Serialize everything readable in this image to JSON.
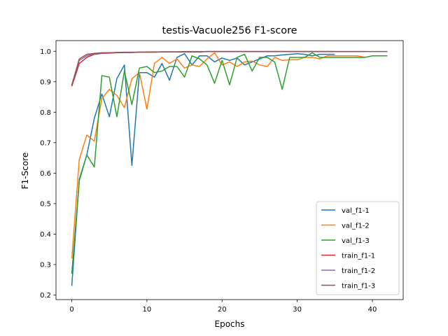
{
  "chart_data": {
    "type": "line",
    "title": "testis-Vacuole256 F1-score",
    "xlabel": "Epochs",
    "ylabel": "F1-Score",
    "xlim": [
      -2.1,
      44.1
    ],
    "ylim": [
      0.185,
      1.035
    ],
    "xticks": [
      0,
      10,
      20,
      30,
      40
    ],
    "yticks": [
      0.2,
      0.3,
      0.4,
      0.5,
      0.6,
      0.7,
      0.8,
      0.9,
      1.0
    ],
    "xtick_labels": [
      "0",
      "10",
      "20",
      "30",
      "40"
    ],
    "ytick_labels": [
      "0.2",
      "0.3",
      "0.4",
      "0.5",
      "0.6",
      "0.7",
      "0.8",
      "0.9",
      "1.0"
    ],
    "grid": false,
    "legend_position": "lower-right",
    "series": [
      {
        "name": "val_f1-1",
        "color": "#1f77b4",
        "x": [
          0,
          1,
          2,
          3,
          4,
          5,
          6,
          7,
          8,
          9,
          10,
          11,
          12,
          13,
          14,
          15,
          16,
          17,
          18,
          19,
          20,
          21,
          22,
          23,
          24,
          25,
          26,
          27,
          28,
          29,
          30,
          31,
          32,
          33,
          34,
          35
        ],
        "values": [
          0.23,
          0.58,
          0.66,
          0.78,
          0.86,
          0.785,
          0.91,
          0.955,
          0.625,
          0.93,
          0.93,
          0.915,
          0.96,
          0.905,
          0.98,
          0.992,
          0.955,
          0.985,
          0.985,
          0.965,
          0.978,
          0.97,
          0.978,
          0.955,
          0.965,
          0.975,
          0.985,
          0.985,
          0.988,
          0.99,
          0.992,
          0.99,
          0.985,
          0.99,
          0.99,
          0.99
        ]
      },
      {
        "name": "val_f1-2",
        "color": "#ff7f0e",
        "x": [
          0,
          1,
          2,
          3,
          4,
          5,
          6,
          7,
          8,
          9,
          10,
          11,
          12,
          13,
          14,
          15,
          16,
          17,
          18,
          19,
          20,
          21,
          22,
          23,
          24,
          25,
          26,
          27,
          28,
          29,
          30,
          31,
          32,
          33,
          34,
          35,
          36,
          37,
          38,
          39
        ],
        "values": [
          0.32,
          0.645,
          0.725,
          0.705,
          0.845,
          0.875,
          0.855,
          0.815,
          0.91,
          0.93,
          0.81,
          0.96,
          0.98,
          0.96,
          0.975,
          0.945,
          0.955,
          0.95,
          0.975,
          0.995,
          0.955,
          0.965,
          0.95,
          0.965,
          0.968,
          0.955,
          0.95,
          0.98,
          0.97,
          0.972,
          0.972,
          0.98,
          0.98,
          0.975,
          0.985,
          0.985,
          0.985,
          0.985,
          0.985,
          0.98
        ]
      },
      {
        "name": "val_f1-3",
        "color": "#2ca02c",
        "x": [
          0,
          1,
          2,
          3,
          4,
          5,
          6,
          7,
          8,
          9,
          10,
          11,
          12,
          13,
          14,
          15,
          16,
          17,
          18,
          19,
          20,
          21,
          22,
          23,
          24,
          25,
          26,
          27,
          28,
          29,
          30,
          31,
          32,
          33,
          34,
          35,
          36,
          37,
          38,
          39,
          40,
          41,
          42
        ],
        "values": [
          0.27,
          0.575,
          0.66,
          0.62,
          0.92,
          0.915,
          0.785,
          0.935,
          0.825,
          0.945,
          0.95,
          0.93,
          0.935,
          0.95,
          0.95,
          0.915,
          0.985,
          0.975,
          0.955,
          0.895,
          0.97,
          0.89,
          0.98,
          0.99,
          0.935,
          0.98,
          0.98,
          0.965,
          0.875,
          0.98,
          0.98,
          0.98,
          0.995,
          0.98,
          0.98,
          0.98,
          0.98,
          0.98,
          0.98,
          0.98,
          0.985,
          0.985,
          0.985
        ]
      },
      {
        "name": "train_f1-1",
        "color": "#d62728",
        "x": [
          0,
          1,
          2,
          3,
          4,
          5,
          6,
          7,
          8,
          9,
          10,
          11,
          12,
          13,
          14,
          15,
          16,
          17,
          18,
          19,
          20,
          21,
          22,
          23,
          24,
          25,
          26,
          27,
          28,
          29,
          30,
          31,
          32,
          33,
          34,
          35
        ],
        "values": [
          0.885,
          0.96,
          0.98,
          0.99,
          0.993,
          0.994,
          0.995,
          0.996,
          0.996,
          0.997,
          0.997,
          0.997,
          0.998,
          0.998,
          0.998,
          0.998,
          0.998,
          0.998,
          0.999,
          0.999,
          0.999,
          0.999,
          0.999,
          0.999,
          0.999,
          0.999,
          0.999,
          0.999,
          0.999,
          0.999,
          0.999,
          0.999,
          0.999,
          0.999,
          0.999,
          0.999
        ]
      },
      {
        "name": "train_f1-2",
        "color": "#9467bd",
        "x": [
          0,
          1,
          2,
          3,
          4,
          5,
          6,
          7,
          8,
          9,
          10,
          11,
          12,
          13,
          14,
          15,
          16,
          17,
          18,
          19,
          20,
          21,
          22,
          23,
          24,
          25,
          26,
          27,
          28,
          29,
          30,
          31,
          32,
          33,
          34,
          35,
          36,
          37,
          38,
          39
        ],
        "values": [
          0.89,
          0.97,
          0.985,
          0.992,
          0.994,
          0.995,
          0.996,
          0.997,
          0.997,
          0.997,
          0.998,
          0.998,
          0.998,
          0.998,
          0.998,
          0.999,
          0.999,
          0.999,
          0.999,
          0.999,
          0.999,
          0.999,
          0.999,
          0.999,
          0.999,
          0.999,
          0.999,
          0.999,
          0.999,
          0.999,
          0.999,
          0.999,
          0.999,
          0.999,
          0.999,
          0.999,
          0.999,
          0.999,
          0.999,
          0.999
        ]
      },
      {
        "name": "train_f1-3",
        "color": "#8c564b",
        "x": [
          0,
          1,
          2,
          3,
          4,
          5,
          6,
          7,
          8,
          9,
          10,
          11,
          12,
          13,
          14,
          15,
          16,
          17,
          18,
          19,
          20,
          21,
          22,
          23,
          24,
          25,
          26,
          27,
          28,
          29,
          30,
          31,
          32,
          33,
          34,
          35,
          36,
          37,
          38,
          39,
          40,
          41,
          42
        ],
        "values": [
          0.888,
          0.975,
          0.99,
          0.993,
          0.995,
          0.995,
          0.996,
          0.996,
          0.996,
          0.997,
          0.997,
          0.997,
          0.998,
          0.998,
          0.998,
          0.998,
          0.998,
          0.998,
          0.999,
          0.999,
          0.999,
          0.999,
          0.999,
          0.999,
          0.999,
          0.999,
          0.999,
          0.999,
          0.999,
          0.999,
          0.999,
          0.999,
          0.999,
          0.999,
          0.999,
          0.999,
          0.999,
          0.999,
          0.999,
          0.999,
          0.999,
          0.999,
          0.999
        ]
      }
    ]
  }
}
